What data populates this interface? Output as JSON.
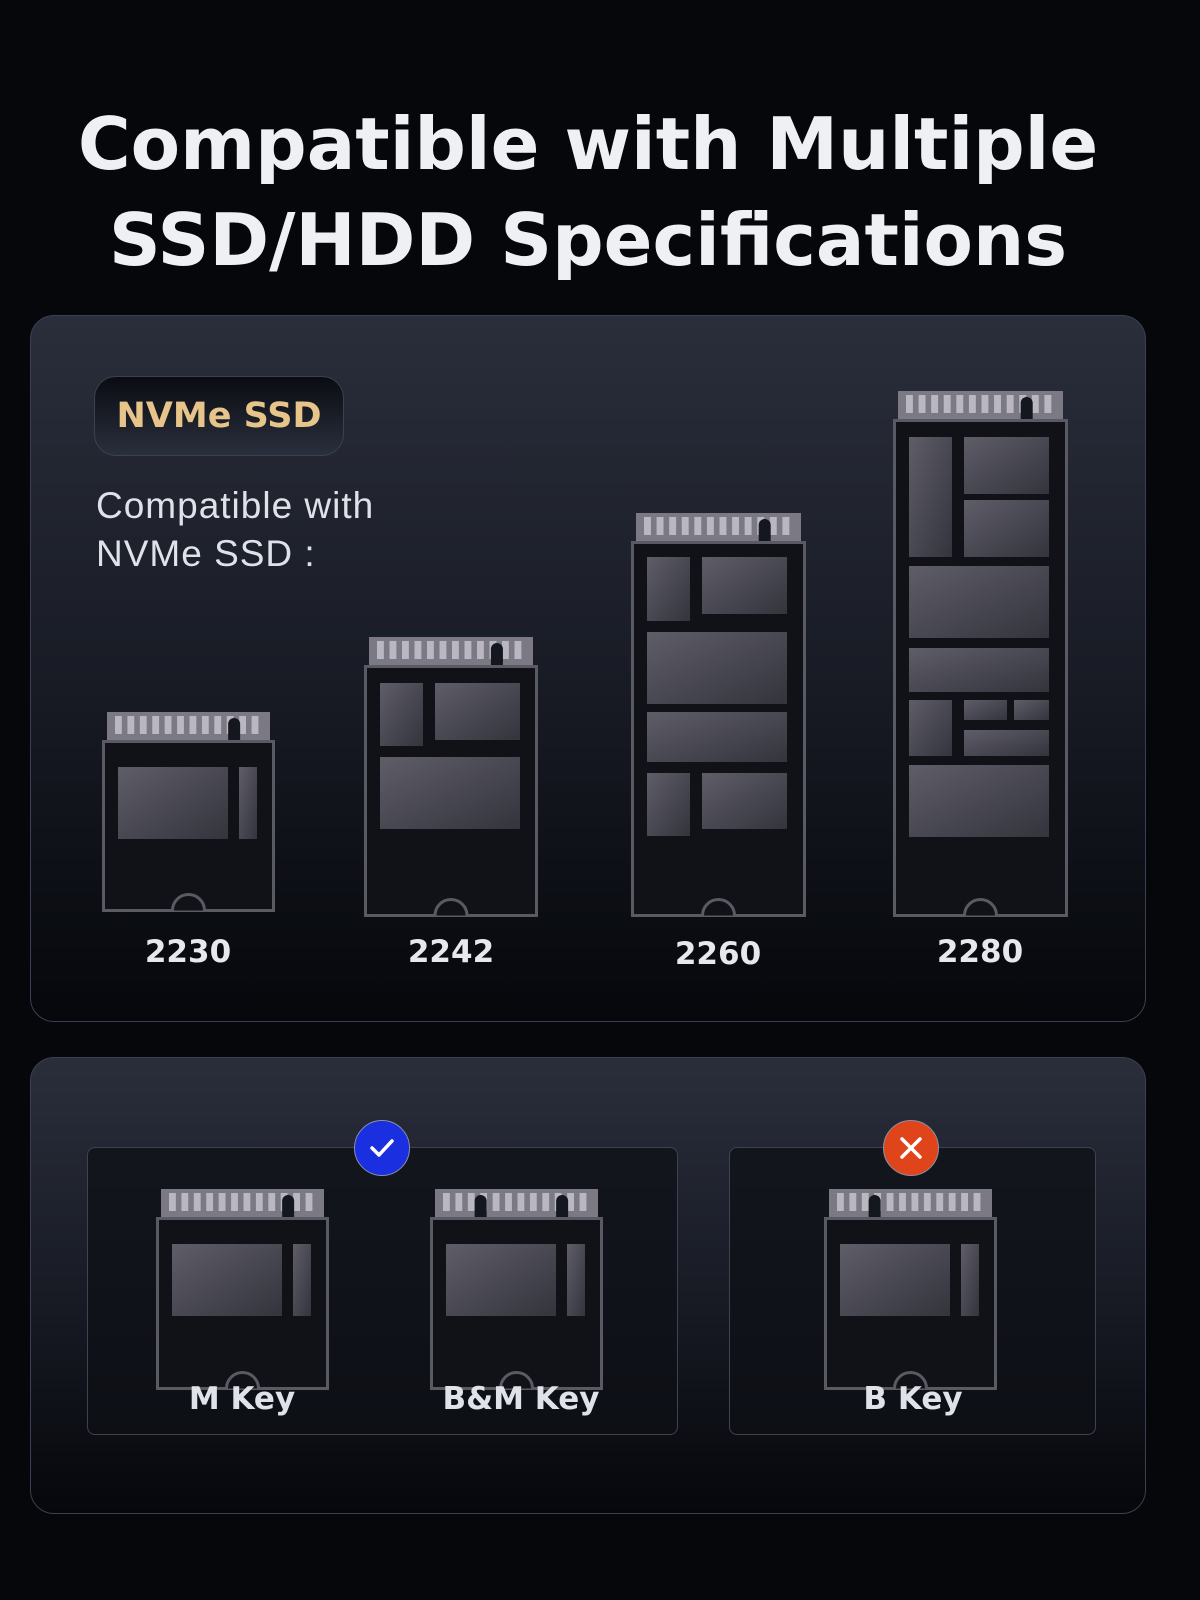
{
  "title": {
    "line1": "Compatible with Multiple",
    "line2": "SSD/HDD Specifications"
  },
  "nvme_card": {
    "badge": "NVMe SSD",
    "subtitle_line1": "Compatible with",
    "subtitle_line2": "NVMe SSD :",
    "sizes": [
      "2230",
      "2242",
      "2260",
      "2280"
    ]
  },
  "key_card": {
    "compatible": {
      "status_icon": "check-icon",
      "color": "#1a2fe0",
      "keys": [
        "M Key",
        "B&M Key"
      ]
    },
    "incompatible": {
      "status_icon": "close-icon",
      "color": "#e0441b",
      "keys": [
        "B Key"
      ]
    }
  },
  "colors": {
    "badge_text": "#e7c48a",
    "background": "#05070b"
  }
}
